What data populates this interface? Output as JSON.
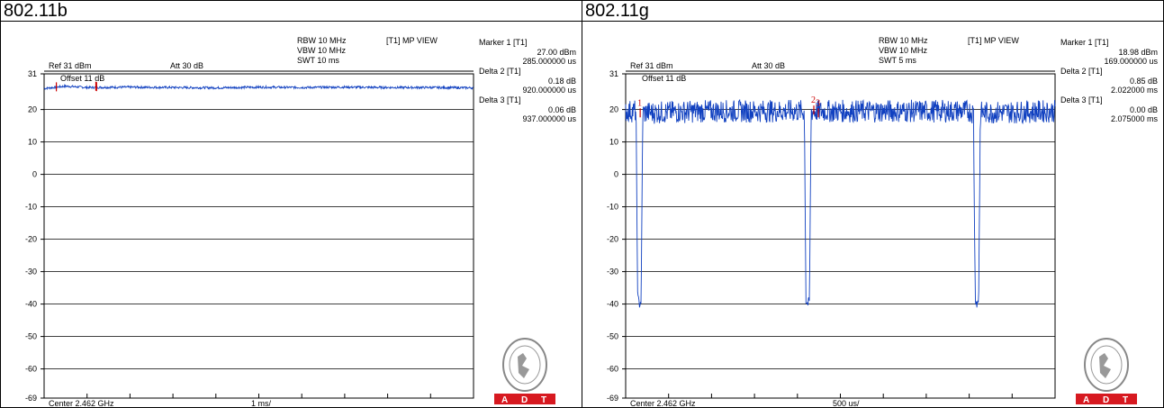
{
  "panels": [
    {
      "title": "802.11b",
      "rbw": "RBW 10 MHz",
      "vbw": "VBW 10 MHz",
      "swt": "SWT 10 ms",
      "view": "[T1] MP VIEW",
      "ref": "Ref 31 dBm",
      "att": "Att  30 dB",
      "offset": "Offset 11 dB",
      "center": "Center 2.462 GHz",
      "span": "1 ms/",
      "markers": [
        {
          "label": "Marker 1 [T1]",
          "v1": "27.00 dBm",
          "v2": "285.000000 us"
        },
        {
          "label": "Delta 2 [T1]",
          "v1": "0.18 dB",
          "v2": "920.000000 us"
        },
        {
          "label": "Delta 3 [T1]",
          "v1": "0.06 dB",
          "v2": "937.000000 us"
        }
      ]
    },
    {
      "title": "802.11g",
      "rbw": "RBW 10 MHz",
      "vbw": "VBW 10 MHz",
      "swt": "SWT 5 ms",
      "view": "[T1] MP VIEW",
      "ref": "Ref 31 dBm",
      "att": "Att  30 dB",
      "offset": "Offset 11 dB",
      "center": "Center 2.462 GHz",
      "span": "500 us/",
      "markers": [
        {
          "label": "Marker 1 [T1]",
          "v1": "18.98 dBm",
          "v2": "169.000000 us"
        },
        {
          "label": "Delta 2 [T1]",
          "v1": "0.85 dB",
          "v2": "2.022000 ms"
        },
        {
          "label": "Delta 3 [T1]",
          "v1": "0.00 dB",
          "v2": "2.075000 ms"
        }
      ]
    }
  ],
  "logo": {
    "brand": "ADT",
    "seal": "BUREAU VERITAS",
    "year": "1828"
  },
  "chart_data": [
    {
      "type": "line",
      "title": "802.11b",
      "xlabel": "1 ms/",
      "ylabel": "",
      "x_unit": "ms",
      "xlim": [
        0,
        10
      ],
      "ylim": [
        -69,
        31
      ],
      "yticks": [
        31,
        20,
        10,
        0,
        -10,
        -20,
        -30,
        -40,
        -50,
        -60,
        -69
      ],
      "grid": true,
      "series": [
        {
          "x": [
            0,
            0.5,
            1,
            2,
            3,
            4,
            5,
            6,
            7,
            8,
            9,
            10
          ],
          "y": [
            26.5,
            27.2,
            26.8,
            26.9,
            26.8,
            26.7,
            26.9,
            26.8,
            26.9,
            26.8,
            26.8,
            26.7
          ]
        }
      ],
      "markers": [
        {
          "label": "1",
          "x": 0.285,
          "y": 27.0
        },
        {
          "label": "2",
          "x": 1.205,
          "y": 27.18
        },
        {
          "label": "3",
          "x": 1.222,
          "y": 27.06
        }
      ]
    },
    {
      "type": "line",
      "title": "802.11g",
      "xlabel": "500 us/",
      "ylabel": "",
      "x_unit": "ms",
      "xlim": [
        0,
        5
      ],
      "ylim": [
        -69,
        31
      ],
      "yticks": [
        31,
        20,
        10,
        0,
        -10,
        -20,
        -30,
        -40,
        -50,
        -60,
        -69
      ],
      "grid": true,
      "series": [
        {
          "x": [
            0,
            0.12,
            0.14,
            0.16,
            0.18,
            0.2,
            1.0,
            2.0,
            2.08,
            2.1,
            2.12,
            2.14,
            2.16,
            3.0,
            4.0,
            4.05,
            4.07,
            4.09,
            4.11,
            4.13,
            5.0
          ],
          "y": [
            19.5,
            19.5,
            -38,
            -40,
            -39,
            19,
            19.5,
            19.5,
            19.5,
            -39,
            -40,
            -39,
            19.5,
            19.5,
            19.5,
            19,
            -38,
            -40,
            -39,
            19,
            19.5
          ]
        }
      ],
      "markers": [
        {
          "label": "1",
          "x": 0.169,
          "y": 18.98
        },
        {
          "label": "2",
          "x": 2.191,
          "y": 19.83
        },
        {
          "label": "3",
          "x": 2.244,
          "y": 18.98
        }
      ]
    }
  ]
}
